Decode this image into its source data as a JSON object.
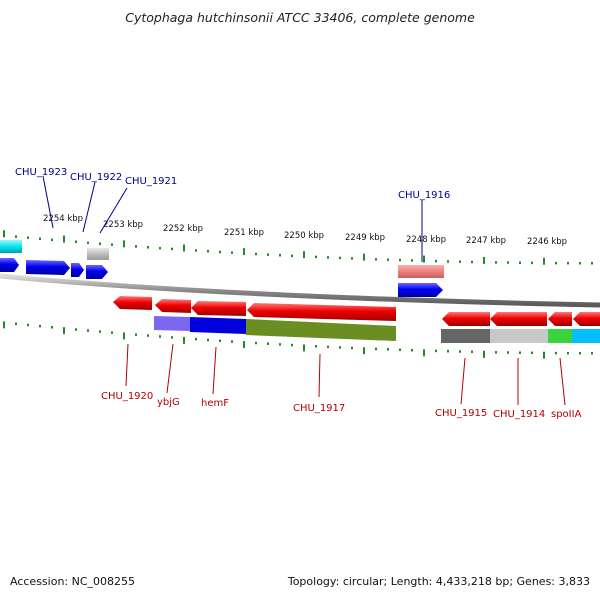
{
  "title": "Cytophaga hutchinsonii ATCC 33406, complete genome",
  "footer": {
    "accession": "Accession: NC_008255",
    "summary": "Topology: circular; Length: 4,433,218 bp; Genes: 3,833"
  },
  "scale_labels": [
    "2254 kbp",
    "2253 kbp",
    "2252 kbp",
    "2251 kbp",
    "2250 kbp",
    "2249 kbp",
    "2248 kbp",
    "2247 kbp",
    "2246 kbp"
  ],
  "genes_top": [
    "CHU_1923",
    "CHU_1922",
    "CHU_1921",
    "CHU_1916"
  ],
  "genes_bottom": [
    "CHU_1920",
    "ybjG",
    "hemF",
    "CHU_1917",
    "CHU_1915",
    "CHU_1914",
    "spoIIA"
  ],
  "colors": {
    "forward_cds": "#0000ee",
    "reverse_cds": "#ee0000",
    "backbone": "#888888",
    "ticks": "#228b22",
    "label_forward": "#00008b",
    "label_reverse": "#b30000",
    "cog_purple": "#7b68ee",
    "cog_blue": "#0000cd",
    "cog_olive": "#6b8e23",
    "cog_gray": "#696969",
    "cog_lightgray": "#c0c0c0",
    "cog_green": "#32cd32",
    "cog_cyan": "#00bfff",
    "cog_pink": "#f08080"
  }
}
